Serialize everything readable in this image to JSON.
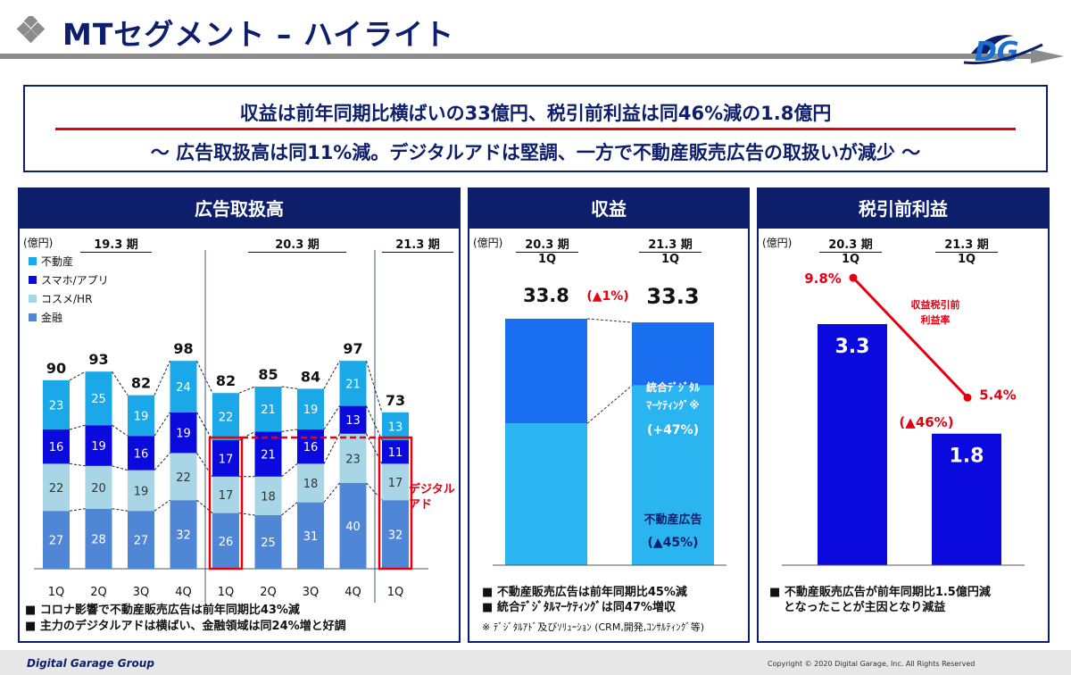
{
  "header": {
    "title": "MTセグメント – ハイライト"
  },
  "headline": {
    "line1": "収益は前年同期比横ばいの33億円、税引前利益は同46%減の1.8億円",
    "line2": "〜 広告取扱高は同11%減。デジタルアドは堅調、一方で不動産販売広告の取扱いが減少 〜"
  },
  "panels": {
    "ad": {
      "title": "広告取扱高",
      "unit": "(億円)",
      "periods": [
        "19.3 期",
        "20.3 期",
        "21.3 期"
      ],
      "digital_label": "デジタル\nアド",
      "bullets": [
        "コロナ影響で不動産販売広告は前年同期比43%減",
        "主力のデジタルアドは横ばい、金融領域は同24%増と好調"
      ]
    },
    "revenue": {
      "title": "収益",
      "unit": "(億円)",
      "col1": "20.3 期",
      "col1_sub": "1Q",
      "col2": "21.3 期",
      "col2_sub": "1Q",
      "value1": "33.8",
      "value2": "33.3",
      "change": "(▲1%)",
      "seg_top_label1": "統合ﾃﾞｼﾞﾀﾙ",
      "seg_top_label2": "ﾏｰｹﾃｨﾝｸﾞ※",
      "seg_top_change": "(+47%)",
      "seg_bottom_label": "不動産広告",
      "seg_bottom_change": "(▲45%)",
      "bullets": [
        "不動産販売広告は前年同期比45%減",
        "統合ﾃﾞｼﾞﾀﾙﾏｰｹﾃｨﾝｸﾞは同47%増収"
      ],
      "note": "※ ﾃﾞｼﾞﾀﾙｱﾄﾞ及びｿﾘｭｰｼｮﾝ (CRM,開発,ｺﾝｻﾙﾃｨﾝｸﾞ等)"
    },
    "profit": {
      "title": "税引前利益",
      "unit": "(億円)",
      "col1": "20.3 期",
      "col1_sub": "1Q",
      "col2": "21.3 期",
      "col2_sub": "1Q",
      "margin_label1": "収益税引前",
      "margin_label2": "利益率",
      "change": "(▲46%)",
      "bullet_line1": "不動産販売広告が前年同期比1.5億円減",
      "bullet_line2": "となったことが主因となり減益"
    }
  },
  "footer": {
    "brand": "Digital Garage Group",
    "copyright": "Copyright © 2020 Digital Garage, Inc. All Rights Reserved"
  },
  "colors": {
    "navy": "#0d1f6b",
    "fudosan": "#1aa8e8",
    "smartphone": "#0a0adf",
    "cosme": "#a8d6e6",
    "kinyu": "#4f86d6",
    "red": "#e60012",
    "revenue_top": "#1a6ff0",
    "revenue_bottom": "#2ab4f0",
    "profit_bar": "#0a0adf"
  },
  "chart_data": [
    {
      "type": "bar",
      "title": "広告取扱高",
      "ylabel": "(億円)",
      "categories": [
        "1Q",
        "2Q",
        "3Q",
        "4Q",
        "1Q",
        "2Q",
        "3Q",
        "4Q",
        "1Q"
      ],
      "groups": [
        "19.3 期",
        "19.3 期",
        "19.3 期",
        "19.3 期",
        "20.3 期",
        "20.3 期",
        "20.3 期",
        "20.3 期",
        "21.3 期"
      ],
      "totals": [
        90,
        93,
        82,
        98,
        82,
        85,
        84,
        97,
        73
      ],
      "series": [
        {
          "name": "金融",
          "values": [
            27,
            28,
            27,
            32,
            26,
            25,
            31,
            40,
            32
          ]
        },
        {
          "name": "コスメ/HR",
          "values": [
            22,
            20,
            19,
            22,
            17,
            18,
            18,
            23,
            17
          ]
        },
        {
          "name": "スマホ/アプリ",
          "values": [
            16,
            19,
            16,
            19,
            17,
            21,
            16,
            13,
            11
          ]
        },
        {
          "name": "不動産",
          "values": [
            23,
            25,
            19,
            24,
            22,
            21,
            19,
            21,
            13
          ]
        }
      ]
    },
    {
      "type": "bar",
      "title": "収益",
      "ylabel": "(億円)",
      "categories": [
        "20.3 期 1Q",
        "21.3 期 1Q"
      ],
      "values": [
        33.8,
        33.3
      ],
      "segment_split": [
        0.575,
        0.74
      ]
    },
    {
      "type": "bar",
      "title": "税引前利益",
      "ylabel": "(億円)",
      "categories": [
        "20.3 期 1Q",
        "21.3 期 1Q"
      ],
      "values": [
        3.3,
        1.8
      ],
      "margin_pct": [
        9.8,
        5.4
      ],
      "margin_labels": [
        "9.8%",
        "5.4%"
      ]
    }
  ]
}
